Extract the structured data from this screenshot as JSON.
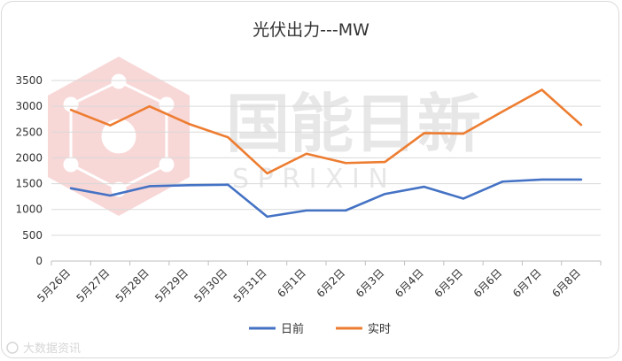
{
  "chart_data": {
    "type": "line",
    "title": "光伏出力---MW",
    "categories": [
      "5月26日",
      "5月27日",
      "5月28日",
      "5月29日",
      "5月30日",
      "5月31日",
      "6月1日",
      "6月2日",
      "6月3日",
      "6月4日",
      "6月5日",
      "6月6日",
      "6月7日",
      "6月8日"
    ],
    "ylim": [
      0,
      3500
    ],
    "yticks": [
      0,
      500,
      1000,
      1500,
      2000,
      2500,
      3000,
      3500
    ],
    "grid": true,
    "legend_position": "bottom",
    "series": [
      {
        "name": "日前",
        "color": "#4472c4",
        "values": [
          1410,
          1270,
          1450,
          1470,
          1480,
          860,
          980,
          980,
          1300,
          1440,
          1210,
          1540,
          1580,
          1580
        ]
      },
      {
        "name": "实时",
        "color": "#ed7d31",
        "values": [
          2930,
          2630,
          3000,
          2660,
          2400,
          1700,
          2080,
          1900,
          1920,
          2480,
          2470,
          2900,
          3320,
          2640
        ]
      }
    ]
  },
  "watermark": {
    "logo_text": "国能日新",
    "sub_text": "S P R I X I N"
  },
  "footer_watermark": "大数据资讯"
}
